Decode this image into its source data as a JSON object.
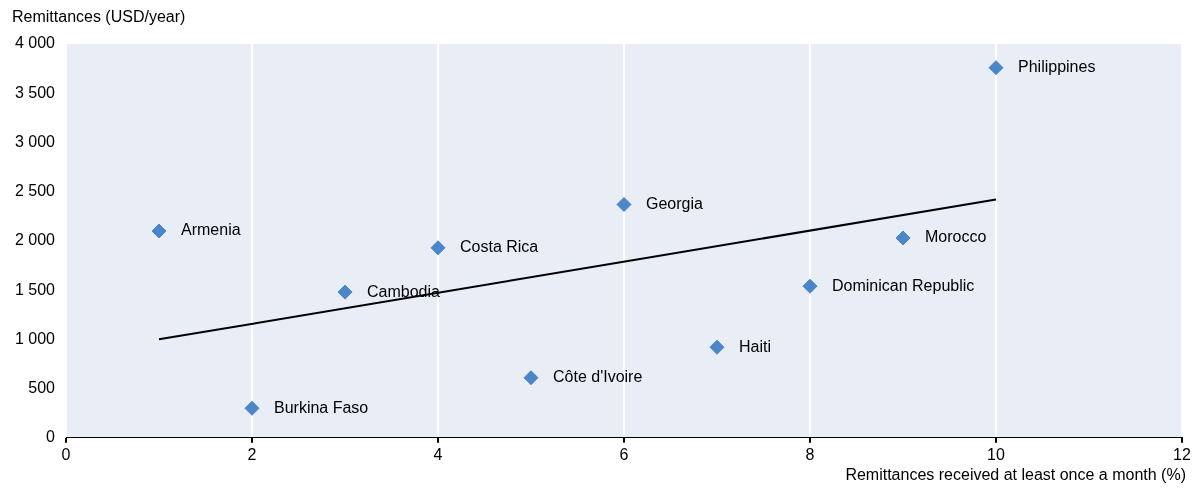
{
  "chart_data": {
    "type": "scatter",
    "xlabel": "Remittances received at least once a month (%)",
    "ylabel": "Remittances (USD/year)",
    "xlim": [
      0,
      12
    ],
    "xticks": [
      0,
      2,
      4,
      6,
      8,
      10,
      12
    ],
    "ylim": [
      0,
      4000
    ],
    "yticks": [
      0,
      {
        "value": 500,
        "label": "500"
      },
      {
        "value": 1000,
        "label": "1 000"
      },
      {
        "value": 1500,
        "label": "1 500"
      },
      {
        "value": 2000,
        "label": "2 000"
      },
      {
        "value": 2500,
        "label": "2 500"
      },
      {
        "value": 3000,
        "label": "3 000"
      },
      {
        "value": 3500,
        "label": "3 500"
      },
      {
        "value": 4000,
        "label": "4 000"
      }
    ],
    "grid": "x",
    "legend": false,
    "series": [
      {
        "marker": "diamond",
        "color": "#4a86c8",
        "x": [
          1,
          2,
          3,
          4,
          5,
          6,
          7,
          8,
          9,
          10
        ],
        "values": [
          2100,
          300,
          1480,
          1930,
          610,
          2370,
          920,
          1540,
          2030,
          3760
        ]
      },
      {
        "type": "line",
        "marker": "none",
        "color": "#000000",
        "x": [
          1,
          10
        ],
        "values": [
          1000,
          2420
        ]
      }
    ],
    "annotations": [
      {
        "text": "Armenia",
        "x": 1,
        "y": 2100
      },
      {
        "text": "Burkina Faso",
        "x": 2,
        "y": 300
      },
      {
        "text": "Cambodia",
        "x": 3,
        "y": 1480
      },
      {
        "text": "Costa Rica",
        "x": 4,
        "y": 1930
      },
      {
        "text": "Côte d'Ivoire",
        "x": 5,
        "y": 610
      },
      {
        "text": "Georgia",
        "x": 6,
        "y": 2370
      },
      {
        "text": "Haiti",
        "x": 7,
        "y": 920
      },
      {
        "text": "Dominican Republic",
        "x": 8,
        "y": 1540
      },
      {
        "text": "Morocco",
        "x": 9,
        "y": 2030
      },
      {
        "text": "Philippines",
        "x": 10,
        "y": 3760
      }
    ]
  }
}
